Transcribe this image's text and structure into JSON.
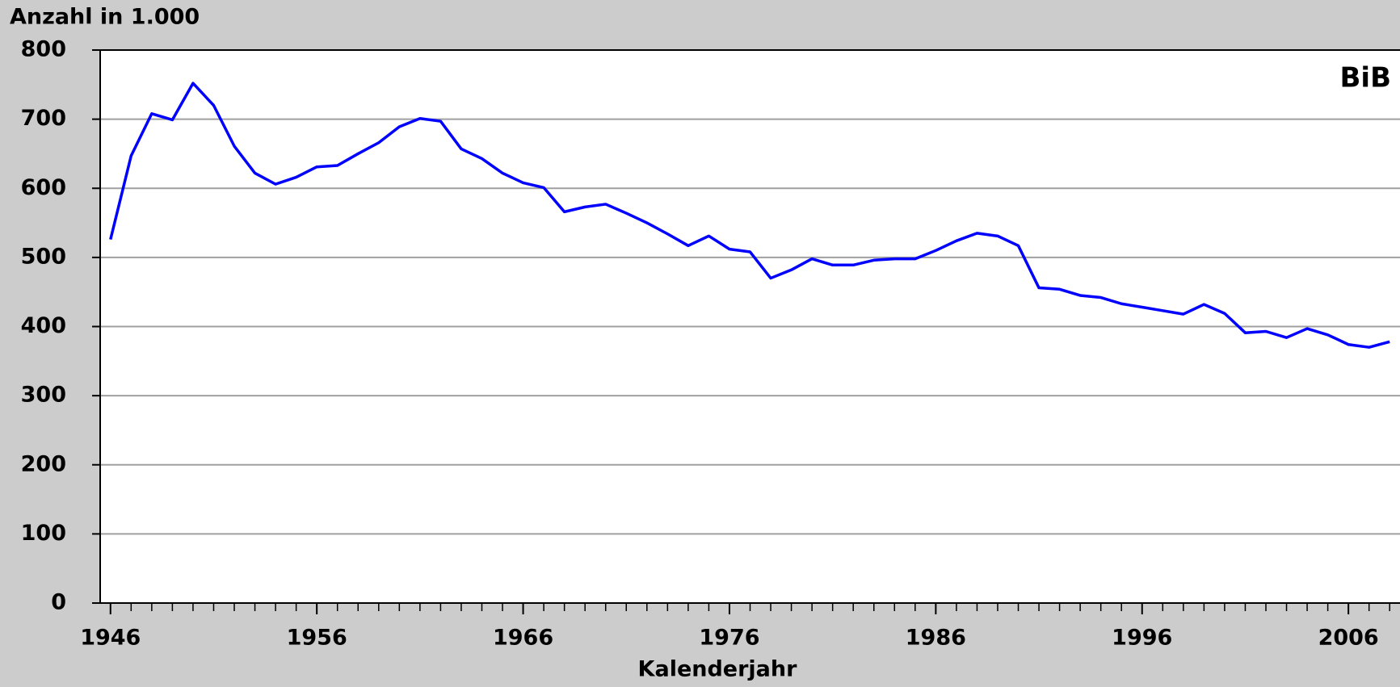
{
  "chart_data": {
    "type": "line",
    "title": "Anzahl in 1.000",
    "annotation": "BiB",
    "xlabel": "Kalenderjahr",
    "x": [
      1946,
      1947,
      1948,
      1949,
      1950,
      1951,
      1952,
      1953,
      1954,
      1955,
      1956,
      1957,
      1958,
      1959,
      1960,
      1961,
      1962,
      1963,
      1964,
      1965,
      1966,
      1967,
      1968,
      1969,
      1970,
      1971,
      1972,
      1973,
      1974,
      1975,
      1976,
      1977,
      1978,
      1979,
      1980,
      1981,
      1982,
      1983,
      1984,
      1985,
      1986,
      1987,
      1988,
      1989,
      1990,
      1991,
      1992,
      1993,
      1994,
      1995,
      1996,
      1997,
      1998,
      1999,
      2000,
      2001,
      2002,
      2003,
      2004,
      2005,
      2006,
      2007,
      2008
    ],
    "series": [
      {
        "color": "#0000ff",
        "values": [
          526,
          647,
          708,
          699,
          752,
          720,
          661,
          622,
          606,
          616,
          631,
          633,
          650,
          666,
          689,
          701,
          697,
          657,
          643,
          622,
          608,
          601,
          566,
          573,
          577,
          564,
          550,
          534,
          517,
          531,
          512,
          508,
          470,
          482,
          498,
          489,
          489,
          496,
          498,
          498,
          510,
          524,
          535,
          531,
          517,
          456,
          454,
          445,
          442,
          433,
          428,
          423,
          418,
          432,
          419,
          391,
          393,
          384,
          397,
          388,
          374,
          370,
          378
        ]
      }
    ],
    "xlim": [
      1945.5,
      2008.5
    ],
    "xticks": [
      1946,
      1956,
      1966,
      1976,
      1986,
      1996,
      2006
    ],
    "ylim": [
      0,
      800
    ],
    "yticks": [
      0,
      100,
      200,
      300,
      400,
      500,
      600,
      700,
      800
    ],
    "grid": true
  }
}
